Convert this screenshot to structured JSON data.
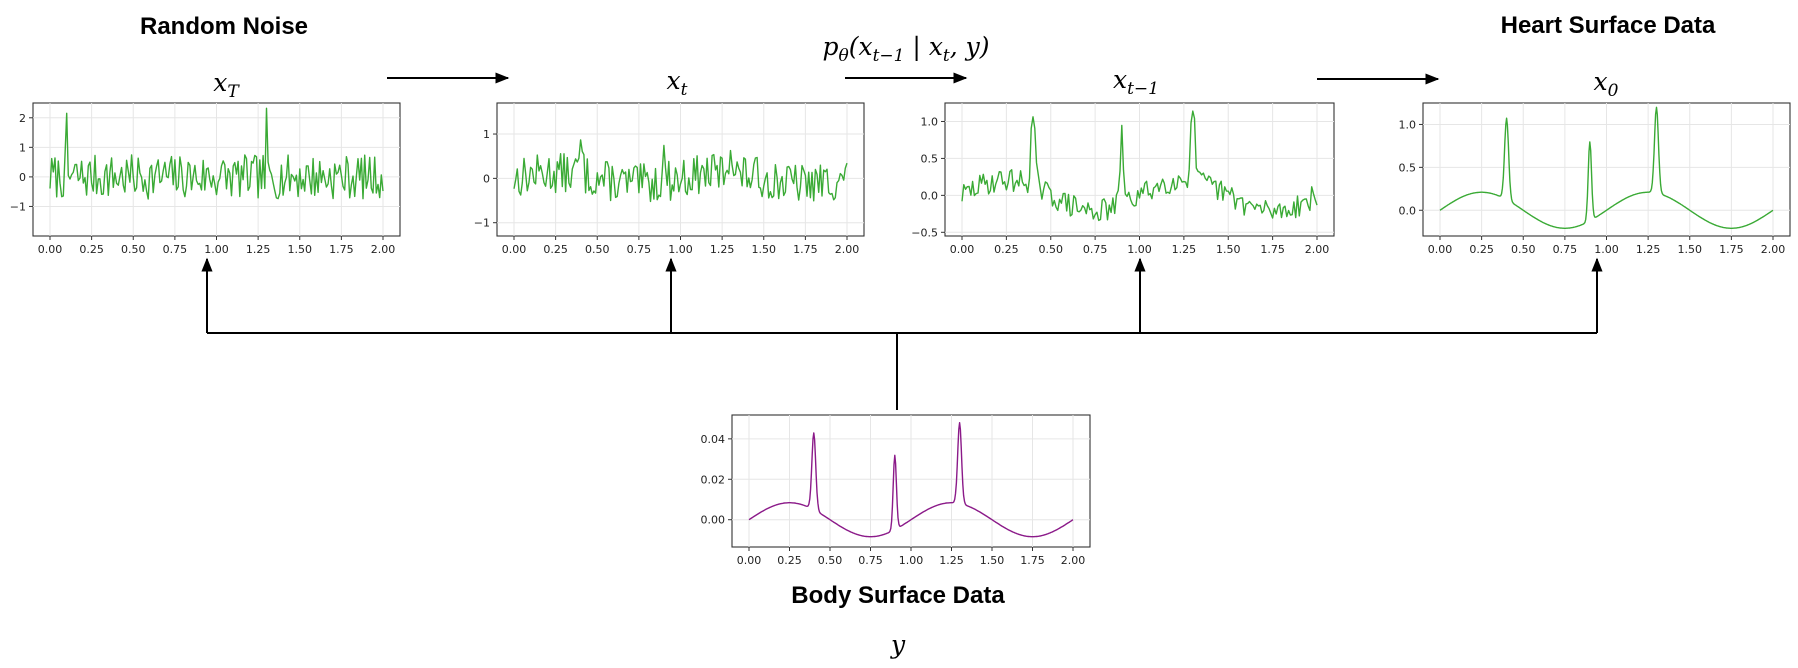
{
  "labels": {
    "random_noise": "Random Noise",
    "heart_surface": "Heart Surface Data",
    "body_surface": "Body Surface Data",
    "x_T_base": "x",
    "x_T_sub": "T",
    "x_t_base": "x",
    "x_t_sub": "t",
    "x_tm1_base": "x",
    "x_tm1_sub": "t−1",
    "x_0_base": "x",
    "x_0_sub": "0",
    "y": "y",
    "transition_p": "p",
    "transition_theta": "θ",
    "transition_open": "(",
    "transition_x1": "x",
    "transition_x1_sub": "t−1",
    "transition_bar": " | ",
    "transition_x2": "x",
    "transition_x2_sub": "t",
    "transition_rest": ", y)"
  },
  "colors": {
    "signal": "#3aaa35",
    "body_signal": "#8b1a89",
    "arrow": "#000000"
  },
  "chart_data": [
    {
      "id": "x_T",
      "type": "line",
      "color": "#3aaa35",
      "xlim": [
        0,
        2
      ],
      "ylim": [
        -2,
        2.5
      ],
      "xticks": [
        "0.00",
        "0.25",
        "0.50",
        "0.75",
        "1.00",
        "1.25",
        "1.50",
        "1.75",
        "2.00"
      ],
      "yticks": [
        {
          "value": 2,
          "label": "2"
        },
        {
          "value": 1,
          "label": "1"
        },
        {
          "value": 0,
          "label": "0"
        },
        {
          "value": -1,
          "label": "−1"
        }
      ],
      "signal": "noise",
      "noise_amp": 0.75,
      "seed": 7
    },
    {
      "id": "x_t",
      "type": "line",
      "color": "#3aaa35",
      "xlim": [
        0,
        2
      ],
      "ylim": [
        -1.3,
        1.7
      ],
      "xticks": [
        "0.00",
        "0.25",
        "0.50",
        "0.75",
        "1.00",
        "1.25",
        "1.50",
        "1.75",
        "2.00"
      ],
      "yticks": [
        {
          "value": 1,
          "label": "1"
        },
        {
          "value": 0,
          "label": "0"
        },
        {
          "value": -1,
          "label": "−1"
        }
      ],
      "signal": "mix",
      "signal_weight": 0.6,
      "noise_amp": 0.45,
      "seed": 13
    },
    {
      "id": "x_tm1",
      "type": "line",
      "color": "#3aaa35",
      "xlim": [
        0,
        2
      ],
      "ylim": [
        -0.55,
        1.25
      ],
      "xticks": [
        "0.00",
        "0.25",
        "0.50",
        "0.75",
        "1.00",
        "1.25",
        "1.50",
        "1.75",
        "2.00"
      ],
      "yticks": [
        {
          "value": 1.0,
          "label": "1.0"
        },
        {
          "value": 0.5,
          "label": "0.5"
        },
        {
          "value": 0.0,
          "label": "0.0"
        },
        {
          "value": -0.5,
          "label": "−0.5"
        }
      ],
      "signal": "mix",
      "signal_weight": 1.0,
      "noise_amp": 0.16,
      "seed": 29
    },
    {
      "id": "x_0",
      "type": "line",
      "color": "#3aaa35",
      "xlim": [
        0,
        2
      ],
      "ylim": [
        -0.3,
        1.25
      ],
      "xticks": [
        "0.00",
        "0.25",
        "0.50",
        "0.75",
        "1.00",
        "1.25",
        "1.50",
        "1.75",
        "2.00"
      ],
      "yticks": [
        {
          "value": 1.0,
          "label": "1.0"
        },
        {
          "value": 0.5,
          "label": "0.5"
        },
        {
          "value": 0.0,
          "label": "0.0"
        }
      ],
      "signal": "clean",
      "scale": 1.0
    },
    {
      "id": "y",
      "type": "line",
      "color": "#8b1a89",
      "xlim": [
        0,
        2
      ],
      "ylim": [
        -0.0135,
        0.0518
      ],
      "xticks": [
        "0.00",
        "0.25",
        "0.50",
        "0.75",
        "1.00",
        "1.25",
        "1.50",
        "1.75",
        "2.00"
      ],
      "yticks": [
        {
          "value": 0.04,
          "label": "0.04"
        },
        {
          "value": 0.02,
          "label": "0.02"
        },
        {
          "value": 0.0,
          "label": "0.00"
        }
      ],
      "signal": "clean",
      "scale": 0.04
    }
  ]
}
